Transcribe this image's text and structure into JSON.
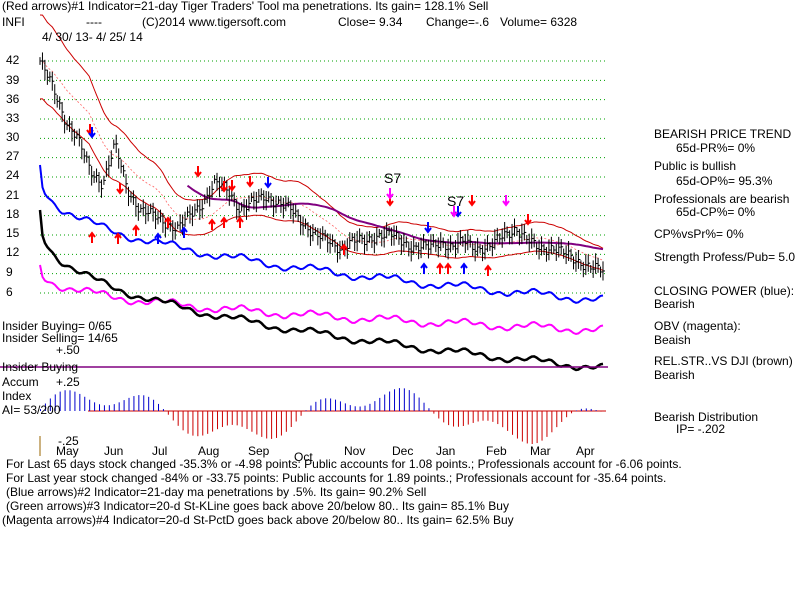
{
  "header": {
    "line1": "(Red arrows)#1 Indicator=21-day Tiger Traders' Tool ma penetrations. Its gain= 128.1% Sell",
    "symbol": "INFI",
    "dashes": "----",
    "copyright": "(C)2014 www.tigersoft.com",
    "close": "Close=  9.34",
    "change": "Change=-.6",
    "volume": "Volume=  6328",
    "date_range": "4/ 30/ 13-  4/ 25/ 14"
  },
  "price_axis": {
    "tick_labels": [
      "42",
      "39",
      "36",
      "33",
      "30",
      "27",
      "24",
      "21",
      "18",
      "15",
      "12",
      "9",
      "6"
    ]
  },
  "month_labels": [
    "May",
    "Jun",
    "Jul",
    "Aug",
    "Sep",
    "Oct",
    "Nov",
    "Dec",
    "Jan",
    "Feb",
    "Mar",
    "Apr"
  ],
  "annotations": [
    "S7",
    "S7"
  ],
  "left_panel": {
    "insider_buying_count": "Insider Buying=  0/65",
    "insider_selling_count": "Insider Selling=  14/65",
    "plus_50": "+.50",
    "insider_buying_label": "Insider Buying",
    "accum": "Accum",
    "plus_25": "+.25",
    "index": "Index",
    "ai": "AI= 53/200",
    "minus_25": "-.25"
  },
  "right_panel": {
    "trend_title": "BEARISH PRICE TREND",
    "pr": "65d-PR%= 0%",
    "public": "Public is bullish",
    "op": "65d-OP%= 95.3%",
    "pros": "Professionals are bearish",
    "cp": "65d-CP%= 0%",
    "cp_vs_pr": "CP%vsPr%=  0%",
    "strength": "Strength Profess/Pub= 5.0",
    "closing_power": "CLOSING POWER (blue):",
    "closing_power_val": "Bearish",
    "obv": "OBV (magenta):",
    "obv_val": "Beaish",
    "relstr": "REL.STR..VS DJI (brown)",
    "relstr_val": "Bearish",
    "distribution": "Bearish Distribution",
    "ip": "IP= -.202"
  },
  "footer": {
    "line1": "For Last 65 days stock changed -35.3% or -4.98 points:  Public accounts for  1.08 points.;  Professionals account for -6.06 points.",
    "line2": "For Last year stock changed -84% or -33.75 points:  Public accounts for  1.89 points.;  Professionals account for -35.64 points.",
    "line3": "(Blue arrows)#2 Indicator=21-day ma penetrations by .5%. Its gain= 90.2% Sell",
    "line4": "(Green arrows)#3 Indicator=20-d St-KLine goes back above 20/below 80.. Its gain= 85.1% Buy",
    "line5": "(Magenta arrows)#4 Indicator=20-d St-PctD goes back above 20/below 80.. Its gain= 62.5% Buy"
  },
  "colors": {
    "price": "#000000",
    "grid": "#00a000",
    "envelope": "#cc0000",
    "moving_average": "#800080",
    "closing_power": "#0000ff",
    "obv": "#ff00ff",
    "relative_strength": "#000000",
    "accum_positive": "#0000cc",
    "accum_negative": "#cc0000",
    "buy_arrow": "#ff0000",
    "sell_arrow": "#ff0000",
    "blue_arrow": "#0000ff",
    "magenta_arrow": "#ff00ff"
  },
  "chart_data": {
    "type": "line",
    "title": "INFI",
    "x_range": [
      "4/30/13",
      "4/25/14"
    ],
    "y_ticks": [
      42,
      39,
      36,
      33,
      30,
      27,
      24,
      21,
      18,
      15,
      12,
      9,
      6
    ],
    "ylim": [
      6,
      43
    ],
    "grid": true,
    "months": [
      "May",
      "Jun",
      "Jul",
      "Aug",
      "Sep",
      "Oct",
      "Nov",
      "Dec",
      "Jan",
      "Feb",
      "Mar",
      "Apr"
    ],
    "series": [
      {
        "name": "Close",
        "values": [
          42,
          38,
          33,
          30,
          25,
          23,
          29,
          22,
          19,
          18,
          17,
          16,
          18,
          20,
          23,
          22,
          19,
          20,
          21,
          20,
          19,
          17,
          15,
          14,
          13,
          14,
          14,
          15,
          15,
          14,
          13,
          13,
          14,
          13,
          14,
          13,
          13,
          15,
          16,
          14,
          13,
          13,
          12,
          11,
          10,
          9.34
        ]
      },
      {
        "name": "CLOSING POWER (blue)"
      },
      {
        "name": "OBV (magenta)"
      },
      {
        "name": "REL.STR..VS DJI (brown)"
      }
    ],
    "accum_index_extremes": {
      "max": 0.5,
      "min": -0.25
    },
    "close": 9.34,
    "change": -0.6,
    "volume": 6328
  }
}
